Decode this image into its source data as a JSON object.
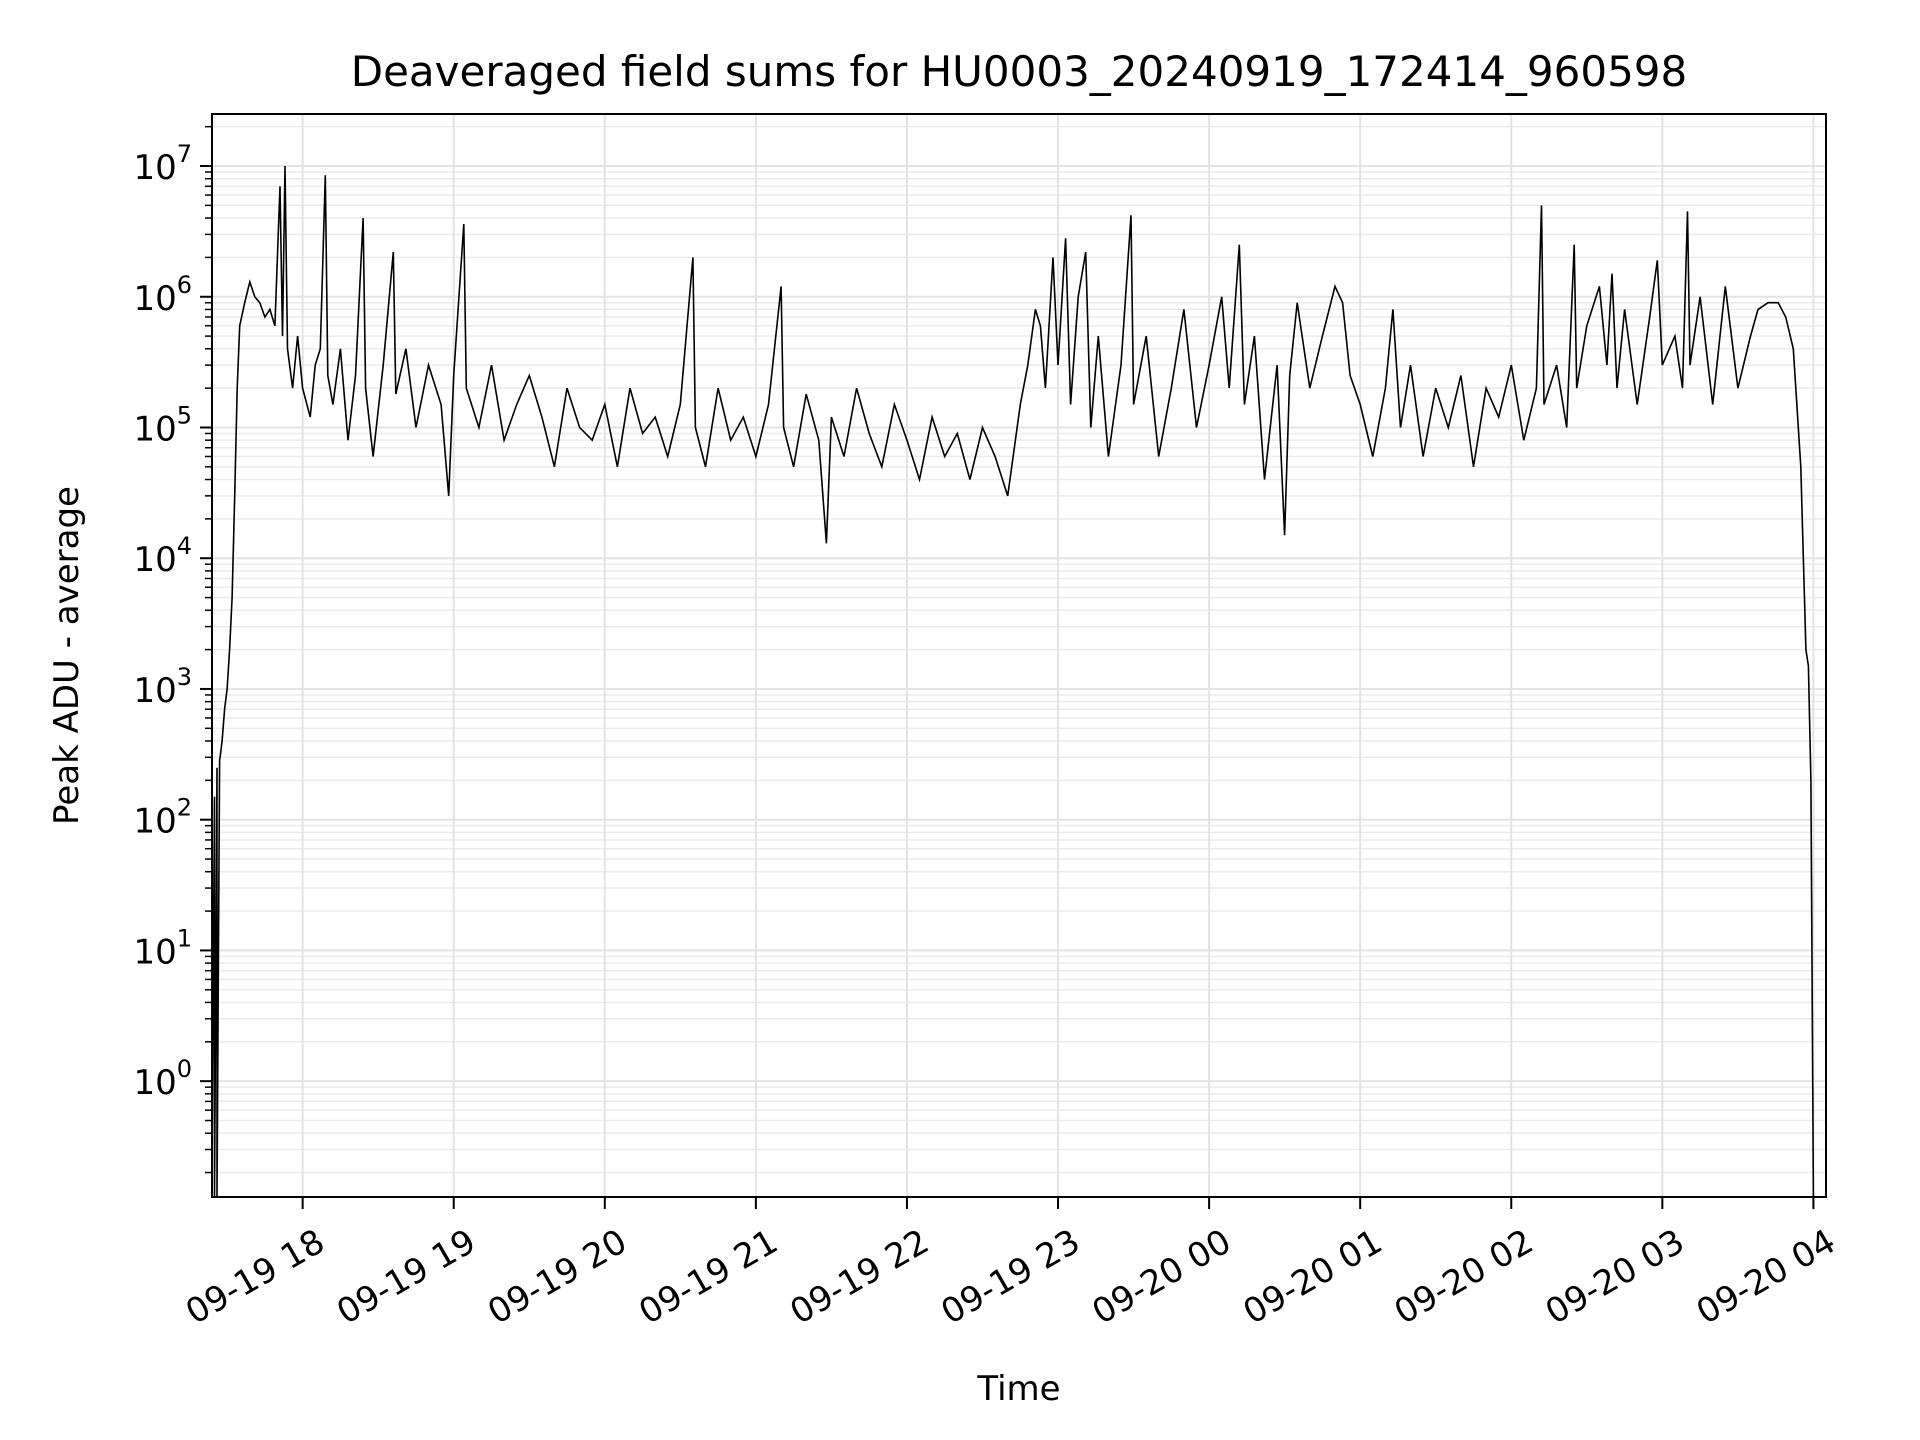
{
  "chart_data": {
    "type": "line",
    "title": "Deaveraged field sums for HU0003_20240919_172414_960598",
    "xlabel": "Time",
    "ylabel": "Peak ADU - average",
    "yscale": "log",
    "ylim": [
      0.13,
      25000000
    ],
    "xlim": [
      "2024-09-19 17:24",
      "2024-09-20 04:05"
    ],
    "grid": true,
    "line_color": "#000000",
    "x_ticks": [
      {
        "value": "2024-09-19 18:00",
        "label": "09-19 18"
      },
      {
        "value": "2024-09-19 19:00",
        "label": "09-19 19"
      },
      {
        "value": "2024-09-19 20:00",
        "label": "09-19 20"
      },
      {
        "value": "2024-09-19 21:00",
        "label": "09-19 21"
      },
      {
        "value": "2024-09-19 22:00",
        "label": "09-19 22"
      },
      {
        "value": "2024-09-19 23:00",
        "label": "09-19 23"
      },
      {
        "value": "2024-09-20 00:00",
        "label": "09-20 00"
      },
      {
        "value": "2024-09-20 01:00",
        "label": "09-20 01"
      },
      {
        "value": "2024-09-20 02:00",
        "label": "09-20 02"
      },
      {
        "value": "2024-09-20 03:00",
        "label": "09-20 03"
      },
      {
        "value": "2024-09-20 04:00",
        "label": "09-20 04"
      }
    ],
    "y_ticks": [
      {
        "value": 1,
        "base": "10",
        "exp": "0"
      },
      {
        "value": 10,
        "base": "10",
        "exp": "1"
      },
      {
        "value": 100,
        "base": "10",
        "exp": "2"
      },
      {
        "value": 1000,
        "base": "10",
        "exp": "3"
      },
      {
        "value": 10000,
        "base": "10",
        "exp": "4"
      },
      {
        "value": 100000,
        "base": "10",
        "exp": "5"
      },
      {
        "value": 1000000,
        "base": "10",
        "exp": "6"
      },
      {
        "value": 10000000,
        "base": "10",
        "exp": "7"
      }
    ],
    "series": [
      {
        "points": [
          [
            "2024-09-19 17:24",
            0.2
          ],
          [
            "2024-09-19 17:25",
            150
          ],
          [
            "2024-09-19 17:25",
            0.13
          ],
          [
            "2024-09-19 17:26",
            250
          ],
          [
            "2024-09-19 17:26",
            0.13
          ],
          [
            "2024-09-19 17:27",
            280
          ],
          [
            "2024-09-19 17:28",
            400
          ],
          [
            "2024-09-19 17:29",
            700
          ],
          [
            "2024-09-19 17:30",
            1000
          ],
          [
            "2024-09-19 17:31",
            2000
          ],
          [
            "2024-09-19 17:32",
            5000
          ],
          [
            "2024-09-19 17:33",
            30000
          ],
          [
            "2024-09-19 17:34",
            200000
          ],
          [
            "2024-09-19 17:35",
            600000
          ],
          [
            "2024-09-19 17:37",
            900000
          ],
          [
            "2024-09-19 17:39",
            1300000
          ],
          [
            "2024-09-19 17:41",
            1000000
          ],
          [
            "2024-09-19 17:43",
            900000
          ],
          [
            "2024-09-19 17:45",
            700000
          ],
          [
            "2024-09-19 17:47",
            800000
          ],
          [
            "2024-09-19 17:49",
            600000
          ],
          [
            "2024-09-19 17:51",
            7000000
          ],
          [
            "2024-09-19 17:52",
            500000
          ],
          [
            "2024-09-19 17:53",
            10000000
          ],
          [
            "2024-09-19 17:54",
            400000
          ],
          [
            "2024-09-19 17:56",
            200000
          ],
          [
            "2024-09-19 17:58",
            500000
          ],
          [
            "2024-09-19 18:00",
            200000
          ],
          [
            "2024-09-19 18:03",
            120000
          ],
          [
            "2024-09-19 18:05",
            300000
          ],
          [
            "2024-09-19 18:07",
            400000
          ],
          [
            "2024-09-19 18:09",
            8500000
          ],
          [
            "2024-09-19 18:10",
            250000
          ],
          [
            "2024-09-19 18:12",
            150000
          ],
          [
            "2024-09-19 18:15",
            400000
          ],
          [
            "2024-09-19 18:18",
            80000
          ],
          [
            "2024-09-19 18:21",
            250000
          ],
          [
            "2024-09-19 18:24",
            4000000
          ],
          [
            "2024-09-19 18:25",
            200000
          ],
          [
            "2024-09-19 18:28",
            60000
          ],
          [
            "2024-09-19 18:32",
            300000
          ],
          [
            "2024-09-19 18:36",
            2200000
          ],
          [
            "2024-09-19 18:37",
            180000
          ],
          [
            "2024-09-19 18:41",
            400000
          ],
          [
            "2024-09-19 18:45",
            100000
          ],
          [
            "2024-09-19 18:50",
            300000
          ],
          [
            "2024-09-19 18:55",
            150000
          ],
          [
            "2024-09-19 18:58",
            30000
          ],
          [
            "2024-09-19 19:00",
            250000
          ],
          [
            "2024-09-19 19:04",
            3600000
          ],
          [
            "2024-09-19 19:05",
            200000
          ],
          [
            "2024-09-19 19:10",
            100000
          ],
          [
            "2024-09-19 19:15",
            300000
          ],
          [
            "2024-09-19 19:20",
            80000
          ],
          [
            "2024-09-19 19:25",
            150000
          ],
          [
            "2024-09-19 19:30",
            250000
          ],
          [
            "2024-09-19 19:35",
            120000
          ],
          [
            "2024-09-19 19:40",
            50000
          ],
          [
            "2024-09-19 19:45",
            200000
          ],
          [
            "2024-09-19 19:50",
            100000
          ],
          [
            "2024-09-19 19:55",
            80000
          ],
          [
            "2024-09-19 20:00",
            150000
          ],
          [
            "2024-09-19 20:05",
            50000
          ],
          [
            "2024-09-19 20:10",
            200000
          ],
          [
            "2024-09-19 20:15",
            90000
          ],
          [
            "2024-09-19 20:20",
            120000
          ],
          [
            "2024-09-19 20:25",
            60000
          ],
          [
            "2024-09-19 20:30",
            150000
          ],
          [
            "2024-09-19 20:35",
            2000000
          ],
          [
            "2024-09-19 20:36",
            100000
          ],
          [
            "2024-09-19 20:40",
            50000
          ],
          [
            "2024-09-19 20:45",
            200000
          ],
          [
            "2024-09-19 20:50",
            80000
          ],
          [
            "2024-09-19 20:55",
            120000
          ],
          [
            "2024-09-19 21:00",
            60000
          ],
          [
            "2024-09-19 21:05",
            150000
          ],
          [
            "2024-09-19 21:10",
            1200000
          ],
          [
            "2024-09-19 21:11",
            100000
          ],
          [
            "2024-09-19 21:15",
            50000
          ],
          [
            "2024-09-19 21:20",
            180000
          ],
          [
            "2024-09-19 21:25",
            80000
          ],
          [
            "2024-09-19 21:28",
            13000
          ],
          [
            "2024-09-19 21:30",
            120000
          ],
          [
            "2024-09-19 21:35",
            60000
          ],
          [
            "2024-09-19 21:40",
            200000
          ],
          [
            "2024-09-19 21:45",
            90000
          ],
          [
            "2024-09-19 21:50",
            50000
          ],
          [
            "2024-09-19 21:55",
            150000
          ],
          [
            "2024-09-19 22:00",
            80000
          ],
          [
            "2024-09-19 22:05",
            40000
          ],
          [
            "2024-09-19 22:10",
            120000
          ],
          [
            "2024-09-19 22:15",
            60000
          ],
          [
            "2024-09-19 22:20",
            90000
          ],
          [
            "2024-09-19 22:25",
            40000
          ],
          [
            "2024-09-19 22:30",
            100000
          ],
          [
            "2024-09-19 22:35",
            60000
          ],
          [
            "2024-09-19 22:40",
            30000
          ],
          [
            "2024-09-19 22:45",
            150000
          ],
          [
            "2024-09-19 22:48",
            300000
          ],
          [
            "2024-09-19 22:51",
            800000
          ],
          [
            "2024-09-19 22:53",
            600000
          ],
          [
            "2024-09-19 22:55",
            200000
          ],
          [
            "2024-09-19 22:58",
            2000000
          ],
          [
            "2024-09-19 23:00",
            300000
          ],
          [
            "2024-09-19 23:03",
            2800000
          ],
          [
            "2024-09-19 23:05",
            150000
          ],
          [
            "2024-09-19 23:08",
            1000000
          ],
          [
            "2024-09-19 23:11",
            2200000
          ],
          [
            "2024-09-19 23:13",
            100000
          ],
          [
            "2024-09-19 23:16",
            500000
          ],
          [
            "2024-09-19 23:20",
            60000
          ],
          [
            "2024-09-19 23:25",
            300000
          ],
          [
            "2024-09-19 23:29",
            4200000
          ],
          [
            "2024-09-19 23:30",
            150000
          ],
          [
            "2024-09-19 23:35",
            500000
          ],
          [
            "2024-09-19 23:40",
            60000
          ],
          [
            "2024-09-19 23:45",
            200000
          ],
          [
            "2024-09-19 23:50",
            800000
          ],
          [
            "2024-09-19 23:55",
            100000
          ],
          [
            "2024-09-20 00:00",
            300000
          ],
          [
            "2024-09-20 00:05",
            1000000
          ],
          [
            "2024-09-20 00:08",
            200000
          ],
          [
            "2024-09-20 00:12",
            2500000
          ],
          [
            "2024-09-20 00:14",
            150000
          ],
          [
            "2024-09-20 00:18",
            500000
          ],
          [
            "2024-09-20 00:22",
            40000
          ],
          [
            "2024-09-20 00:27",
            300000
          ],
          [
            "2024-09-20 00:30",
            15000
          ],
          [
            "2024-09-20 00:32",
            250000
          ],
          [
            "2024-09-20 00:35",
            900000
          ],
          [
            "2024-09-20 00:40",
            200000
          ],
          [
            "2024-09-20 00:45",
            500000
          ],
          [
            "2024-09-20 00:50",
            1200000
          ],
          [
            "2024-09-20 00:53",
            900000
          ],
          [
            "2024-09-20 00:56",
            250000
          ],
          [
            "2024-09-20 01:00",
            150000
          ],
          [
            "2024-09-20 01:05",
            60000
          ],
          [
            "2024-09-20 01:10",
            200000
          ],
          [
            "2024-09-20 01:13",
            800000
          ],
          [
            "2024-09-20 01:16",
            100000
          ],
          [
            "2024-09-20 01:20",
            300000
          ],
          [
            "2024-09-20 01:25",
            60000
          ],
          [
            "2024-09-20 01:30",
            200000
          ],
          [
            "2024-09-20 01:35",
            100000
          ],
          [
            "2024-09-20 01:40",
            250000
          ],
          [
            "2024-09-20 01:45",
            50000
          ],
          [
            "2024-09-20 01:50",
            200000
          ],
          [
            "2024-09-20 01:55",
            120000
          ],
          [
            "2024-09-20 02:00",
            300000
          ],
          [
            "2024-09-20 02:05",
            80000
          ],
          [
            "2024-09-20 02:10",
            200000
          ],
          [
            "2024-09-20 02:12",
            5000000
          ],
          [
            "2024-09-20 02:13",
            150000
          ],
          [
            "2024-09-20 02:18",
            300000
          ],
          [
            "2024-09-20 02:22",
            100000
          ],
          [
            "2024-09-20 02:25",
            2500000
          ],
          [
            "2024-09-20 02:26",
            200000
          ],
          [
            "2024-09-20 02:30",
            600000
          ],
          [
            "2024-09-20 02:35",
            1200000
          ],
          [
            "2024-09-20 02:38",
            300000
          ],
          [
            "2024-09-20 02:40",
            1500000
          ],
          [
            "2024-09-20 02:42",
            200000
          ],
          [
            "2024-09-20 02:45",
            800000
          ],
          [
            "2024-09-20 02:50",
            150000
          ],
          [
            "2024-09-20 02:55",
            700000
          ],
          [
            "2024-09-20 02:58",
            1900000
          ],
          [
            "2024-09-20 03:00",
            300000
          ],
          [
            "2024-09-20 03:05",
            500000
          ],
          [
            "2024-09-20 03:08",
            200000
          ],
          [
            "2024-09-20 03:10",
            4500000
          ],
          [
            "2024-09-20 03:11",
            300000
          ],
          [
            "2024-09-20 03:15",
            1000000
          ],
          [
            "2024-09-20 03:20",
            150000
          ],
          [
            "2024-09-20 03:25",
            1200000
          ],
          [
            "2024-09-20 03:30",
            200000
          ],
          [
            "2024-09-20 03:35",
            500000
          ],
          [
            "2024-09-20 03:38",
            800000
          ],
          [
            "2024-09-20 03:42",
            900000
          ],
          [
            "2024-09-20 03:46",
            900000
          ],
          [
            "2024-09-20 03:49",
            700000
          ],
          [
            "2024-09-20 03:52",
            400000
          ],
          [
            "2024-09-20 03:55",
            50000
          ],
          [
            "2024-09-20 03:57",
            2000
          ],
          [
            "2024-09-20 03:58",
            1500
          ],
          [
            "2024-09-20 03:59",
            200
          ],
          [
            "2024-09-20 04:00",
            0.13
          ]
        ]
      }
    ]
  }
}
